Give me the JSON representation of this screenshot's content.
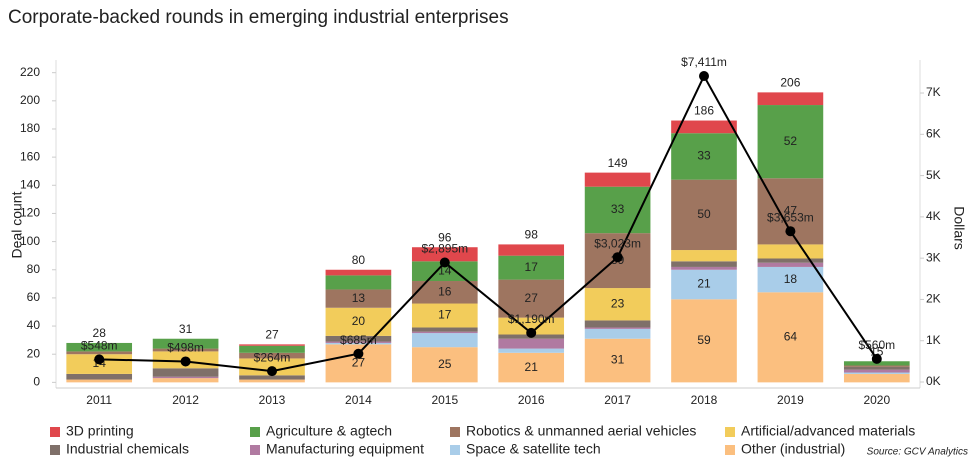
{
  "chart_data": {
    "type": "stacked-bar-line",
    "title": "Corporate-backed rounds in emerging industrial enterprises",
    "y_label": "Deal count",
    "y2_label": "Dollars",
    "source": "Source: GCV Analytics",
    "categories": [
      "2011",
      "2012",
      "2013",
      "2014",
      "2015",
      "2016",
      "2017",
      "2018",
      "2019",
      "2020"
    ],
    "ylim": [
      -4,
      229
    ],
    "yticks": [
      0,
      20,
      40,
      60,
      80,
      100,
      120,
      140,
      160,
      180,
      200,
      220
    ],
    "y2lim": [
      -145,
      7800
    ],
    "y2ticks": [
      {
        "value": 0,
        "label": "0K"
      },
      {
        "value": 1000,
        "label": "1K"
      },
      {
        "value": 2000,
        "label": "2K"
      },
      {
        "value": 3000,
        "label": "3K"
      },
      {
        "value": 4000,
        "label": "4K"
      },
      {
        "value": 5000,
        "label": "5K"
      },
      {
        "value": 6000,
        "label": "6K"
      },
      {
        "value": 7000,
        "label": "7K"
      }
    ],
    "totals": [
      28,
      31,
      27,
      80,
      96,
      98,
      149,
      186,
      206,
      15
    ],
    "series": [
      {
        "name": "3D printing",
        "color": "#e0474c",
        "values": [
          0,
          0,
          1,
          4,
          10,
          8,
          10,
          9,
          9,
          0
        ]
      },
      {
        "name": "Agriculture & agtech",
        "color": "#58a04a",
        "values": [
          6,
          7,
          5,
          10,
          14,
          17,
          33,
          33,
          52,
          3
        ]
      },
      {
        "name": "Robotics & unmanned aerial vehicles",
        "color": "#9e7560",
        "values": [
          2,
          2,
          4,
          13,
          16,
          27,
          39,
          50,
          47,
          1
        ]
      },
      {
        "name": "Artificial/advanced materials",
        "color": "#f2cc5b",
        "values": [
          14,
          12,
          12,
          20,
          17,
          12,
          23,
          8,
          10,
          0
        ]
      },
      {
        "name": "Industrial chemicals",
        "color": "#7f7069",
        "values": [
          4,
          6,
          3,
          4,
          3,
          3,
          5,
          4,
          3,
          2
        ]
      },
      {
        "name": "Manufacturing equipment",
        "color": "#b07aa1",
        "values": [
          0,
          1,
          0,
          1,
          1,
          7,
          1,
          2,
          3,
          2
        ]
      },
      {
        "name": "Space & satellite tech",
        "color": "#a9cde9",
        "values": [
          0,
          0,
          0,
          1,
          10,
          3,
          7,
          21,
          18,
          1
        ]
      },
      {
        "name": "Other (industrial)",
        "color": "#fbbf7f",
        "values": [
          2,
          3,
          2,
          27,
          25,
          21,
          31,
          59,
          64,
          6
        ]
      }
    ],
    "line": {
      "axis": "y2",
      "color": "#000000",
      "values": [
        548,
        498,
        264,
        685,
        2895,
        1190,
        3023,
        7411,
        3653,
        560
      ],
      "value_labels": [
        "$548m",
        "$498m",
        "$264m",
        "$685m",
        "$2,895m",
        "$1,190m",
        "$3,023m",
        "$7,411m",
        "$3,653m",
        "$560m"
      ]
    }
  }
}
